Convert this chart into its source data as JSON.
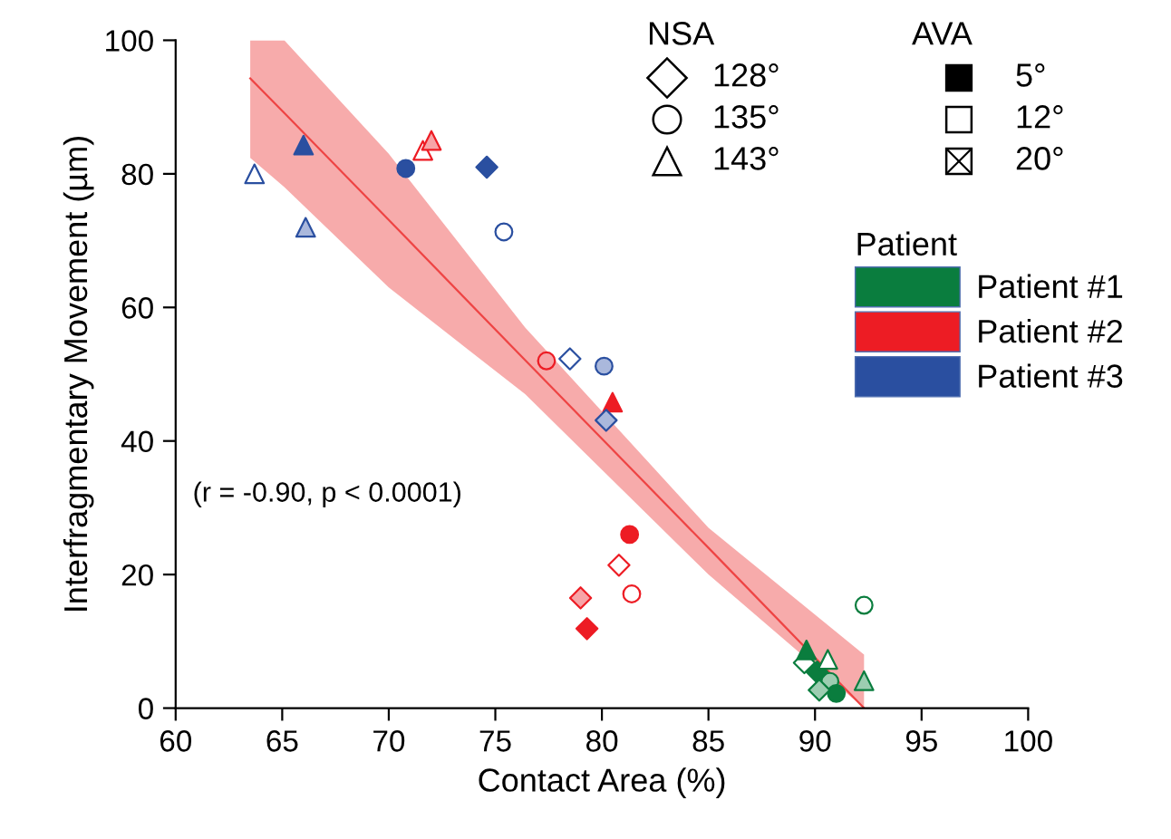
{
  "chart_data": {
    "type": "scatter",
    "xlabel": "Contact Area (%)",
    "ylabel": "Interfragmentary Movement (µm)",
    "xlim": [
      60,
      100
    ],
    "xticks": [
      60,
      65,
      70,
      75,
      80,
      85,
      90,
      95,
      100
    ],
    "ylim": [
      0,
      100
    ],
    "yticks": [
      0,
      20,
      40,
      60,
      80,
      100
    ],
    "legend": "top right",
    "legend_title": "Patient",
    "annotations": [
      "NSA",
      "128°",
      "135°",
      "143°",
      "AVA",
      "5°",
      "12°",
      "20°",
      "(r = -0.90, p < 0.0001)"
    ],
    "series": [
      {
        "type": "line",
        "color": "#ee4444",
        "x": [
          63.5,
          65.1,
          70,
          76.4,
          85,
          92.3
        ],
        "values": [
          94.3,
          89.1,
          73.1,
          52.1,
          24,
          0
        ],
        "upper": [
          100,
          100,
          83,
          57,
          27,
          8
        ],
        "lower": [
          82.4,
          78,
          63,
          47,
          20,
          0
        ]
      },
      {
        "name": "Patient #1",
        "color": "#0a7d3e",
        "marker": "circle",
        "x": [
          92.3,
          90.7,
          91.0
        ],
        "values": [
          15.4,
          4,
          2.2
        ],
        "colors": [
          "#ffffff",
          "#9dcdb1",
          "#0a7d3e"
        ]
      },
      {
        "color": "#0a7d3e",
        "marker": "diamond",
        "x": [
          89.5,
          90.1,
          90.2
        ],
        "values": [
          6.8,
          5.4,
          2.7
        ],
        "colors": [
          "#ffffff",
          "#0a7d3e",
          "#9dcdb1"
        ]
      },
      {
        "color": "#0a7d3e",
        "marker": "triangle",
        "x": [
          89.6,
          90.6,
          92.3
        ],
        "values": [
          8.7,
          7.3,
          4.1
        ],
        "colors": [
          "#0a7d3e",
          "#ffffff",
          "#9dcdb1"
        ]
      },
      {
        "name": "Patient #2",
        "color": "#ed1c24",
        "marker": "triangle",
        "x": [
          71.6,
          72.0,
          80.5
        ],
        "values": [
          83.5,
          85,
          45.8
        ],
        "colors": [
          "#ffffff",
          "#f7a4a7",
          "#ed1c24"
        ]
      },
      {
        "color": "#ed1c24",
        "marker": "circle",
        "x": [
          77.4,
          81.3,
          81.4
        ],
        "values": [
          52,
          26,
          17.1
        ],
        "colors": [
          "#f7a4a7",
          "#ed1c24",
          "#ffffff"
        ]
      },
      {
        "color": "#ed1c24",
        "marker": "diamond",
        "x": [
          80.8,
          79.0,
          79.3
        ],
        "values": [
          21.4,
          16.5,
          11.9
        ],
        "colors": [
          "#ffffff",
          "#f7a4a7",
          "#ed1c24"
        ]
      },
      {
        "name": "Patient #3",
        "color": "#2a4fa0",
        "marker": "triangle",
        "x": [
          63.7,
          66.0,
          66.1
        ],
        "values": [
          80,
          84.3,
          72
        ],
        "colors": [
          "#ffffff",
          "#2a4fa0",
          "#aab8dc"
        ]
      },
      {
        "color": "#2a4fa0",
        "marker": "circle",
        "x": [
          70.8,
          75.4,
          80.1
        ],
        "values": [
          80.8,
          71.3,
          51.2
        ],
        "colors": [
          "#2a4fa0",
          "#ffffff",
          "#aab8dc"
        ]
      },
      {
        "color": "#2a4fa0",
        "marker": "diamond",
        "x": [
          74.6,
          78.5,
          80.2
        ],
        "values": [
          81,
          52.3,
          43.1
        ],
        "colors": [
          "#2a4fa0",
          "#ffffff",
          "#aab8dc"
        ]
      }
    ]
  }
}
